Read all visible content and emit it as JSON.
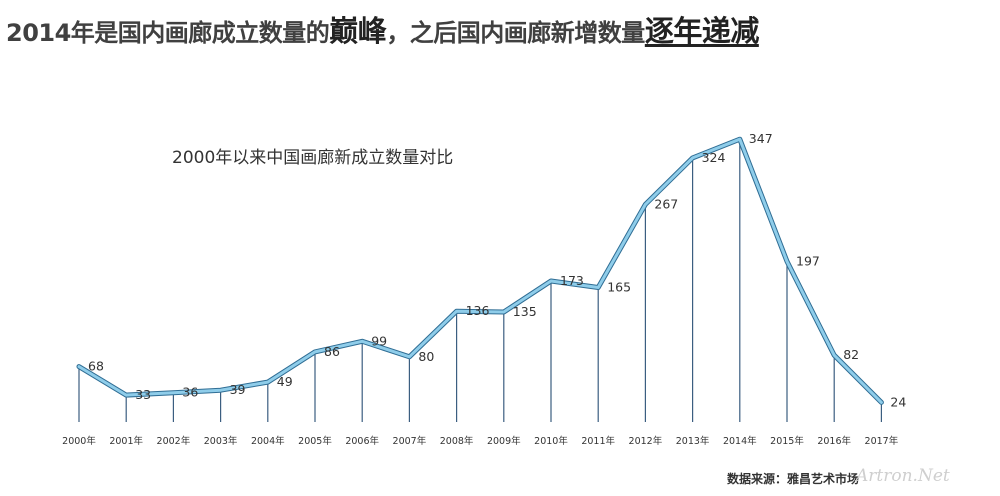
{
  "headline": {
    "part1": "2014年是国内画廊成立数量的",
    "part2": "巅峰",
    "part3": "，之后国内画廊新增数量",
    "part4": "逐年递减"
  },
  "source": "数据来源：雅昌艺术市场",
  "watermark": "Artron.Net",
  "chart_data": {
    "type": "line",
    "title": "2000年以来中国画廊新成立数量对比",
    "categories": [
      "2000年",
      "2001年",
      "2002年",
      "2003年",
      "2004年",
      "2005年",
      "2006年",
      "2007年",
      "2008年",
      "2009年",
      "2010年",
      "2011年",
      "2012年",
      "2013年",
      "2014年",
      "2015年",
      "2016年",
      "2017年"
    ],
    "values": [
      68,
      33,
      36,
      39,
      49,
      86,
      99,
      80,
      136,
      135,
      173,
      165,
      267,
      324,
      347,
      197,
      82,
      24
    ],
    "ylim": [
      0,
      400
    ],
    "grid": false,
    "legend": "none",
    "line_color": "#8fcdea",
    "line_outline_color": "#2f6d94",
    "drop_line_color": "#3b5e80"
  }
}
